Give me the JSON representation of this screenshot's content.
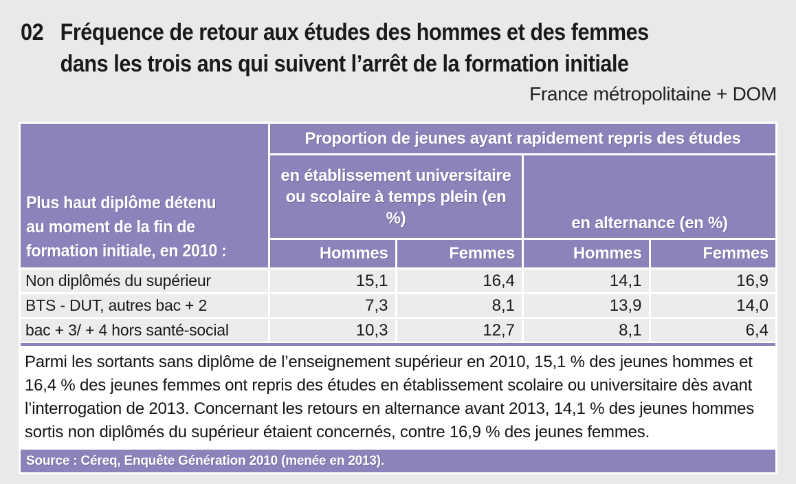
{
  "page": {
    "number": "02",
    "title_line1": "Fréquence de retour aux études des hommes et des femmes",
    "title_line2": "dans les trois ans qui suivent l’arrêt de la formation initiale",
    "region_note": "France métropolitaine + DOM"
  },
  "colors": {
    "accent_purple": "#8a84bb",
    "row_gray": "#ececec",
    "page_background": "#e9e9e9",
    "panel_white": "#ffffff"
  },
  "table": {
    "stub_lines": {
      "line1": "Plus haut diplôme détenu",
      "line2": "au moment de la fin de",
      "line3": "formation initiale, en 2010 :"
    },
    "top_header": "Proportion de jeunes ayant rapidement repris des études",
    "group_headers": {
      "fulltime": "en établissement universitaire ou scolaire à temps plein (en %)",
      "alternance": "en alternance (en %)"
    },
    "col_headers": [
      "Hommes",
      "Femmes",
      "Hommes",
      "Femmes"
    ],
    "rows": [
      {
        "label": "Non diplômés du supérieur",
        "values": [
          "15,1",
          "16,4",
          "14,1",
          "16,9"
        ]
      },
      {
        "label": "BTS - DUT, autres bac + 2",
        "values": [
          "7,3",
          "8,1",
          "13,9",
          "14,0"
        ]
      },
      {
        "label": "bac + 3/ + 4 hors santé-social",
        "values": [
          "10,3",
          "12,7",
          "8,1",
          "6,4"
        ]
      }
    ]
  },
  "chart_data": {
    "type": "table",
    "title": "Fréquence de retour aux études des hommes et des femmes dans les trois ans qui suivent l’arrêt de la formation initiale",
    "categories": [
      "Non diplômés du supérieur",
      "BTS - DUT, autres bac + 2",
      "bac + 3/ + 4 hors santé-social"
    ],
    "series": [
      {
        "name": "en établissement universitaire ou scolaire à temps plein (en %) — Hommes",
        "values": [
          15.1,
          7.3,
          10.3
        ]
      },
      {
        "name": "en établissement universitaire ou scolaire à temps plein (en %) — Femmes",
        "values": [
          16.4,
          8.1,
          12.7
        ]
      },
      {
        "name": "en alternance (en %) — Hommes",
        "values": [
          14.1,
          13.9,
          8.1
        ]
      },
      {
        "name": "en alternance (en %) — Femmes",
        "values": [
          16.9,
          14.0,
          6.4
        ]
      }
    ],
    "unit": "%"
  },
  "note": {
    "text": "Parmi les sortants sans diplôme de l’enseignement supérieur en 2010, 15,1 % des jeunes hommes et 16,4 % des jeunes femmes ont repris des études en établissement scolaire ou universitaire dès avant l’interrogation de 2013. Concernant les retours en alternance avant 2013, 14,1 % des jeunes hommes sortis non diplômés du supérieur étaient concernés, contre 16,9 % des jeunes femmes."
  },
  "source": {
    "text": "Source : Céreq, Enquête Génération 2010 (menée en 2013)."
  }
}
